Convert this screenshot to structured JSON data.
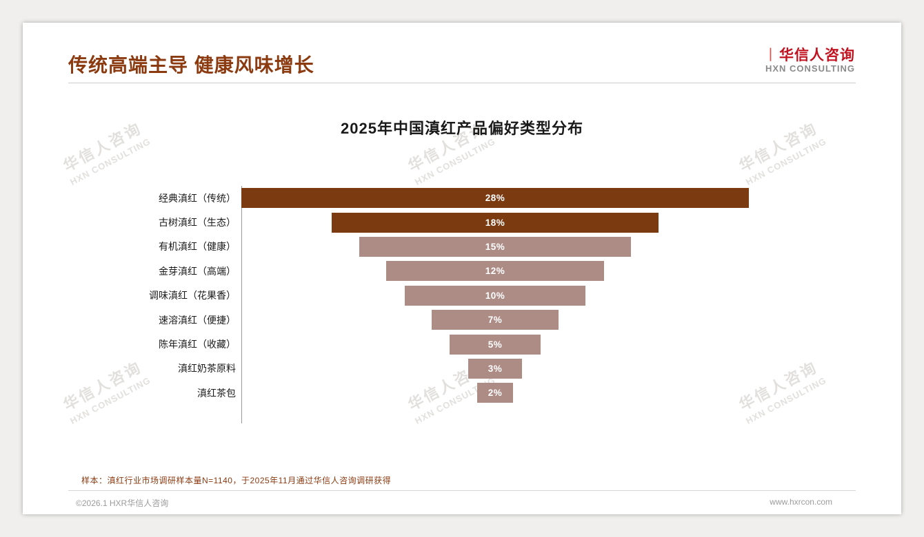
{
  "header": {
    "title": "传统高端主导 健康风味增长"
  },
  "logo": {
    "mark": "丨",
    "cn": "华信人咨询",
    "en": "HXN CONSULTING"
  },
  "watermark": {
    "line1": "华信人咨询",
    "line2": "HXN CONSULTING"
  },
  "chart_data": {
    "type": "bar",
    "variant": "centered-funnel-horizontal",
    "title": "2025年中国滇红产品偏好类型分布",
    "categories": [
      "经典滇红（传统）",
      "古树滇红（生态）",
      "有机滇红（健康）",
      "金芽滇红（高端）",
      "调味滇红（花果香）",
      "速溶滇红（便捷）",
      "陈年滇红（收藏）",
      "滇红奶茶原料",
      "滇红茶包"
    ],
    "values": [
      28,
      18,
      15,
      12,
      10,
      7,
      5,
      3,
      2
    ],
    "labels": [
      "28%",
      "18%",
      "15%",
      "12%",
      "10%",
      "7%",
      "5%",
      "3%",
      "2%"
    ],
    "bar_colors": [
      "#7B3A10",
      "#7B3A10",
      "#AE8C86",
      "#AE8C86",
      "#AE8C86",
      "#AE8C86",
      "#AE8C86",
      "#AE8C86",
      "#AE8C86"
    ],
    "xlim": [
      0,
      28
    ],
    "xlabel": "",
    "ylabel": "",
    "grid": false,
    "legend": "none",
    "value_label_position": "inside-center",
    "value_label_color": "#ffffff"
  },
  "note": "样本：滇红行业市场调研样本量N=1140，于2025年11月通过华信人咨询调研获得",
  "footer": {
    "left": "©2026.1 HXR华信人咨询",
    "right": "www.hxrcon.com"
  }
}
